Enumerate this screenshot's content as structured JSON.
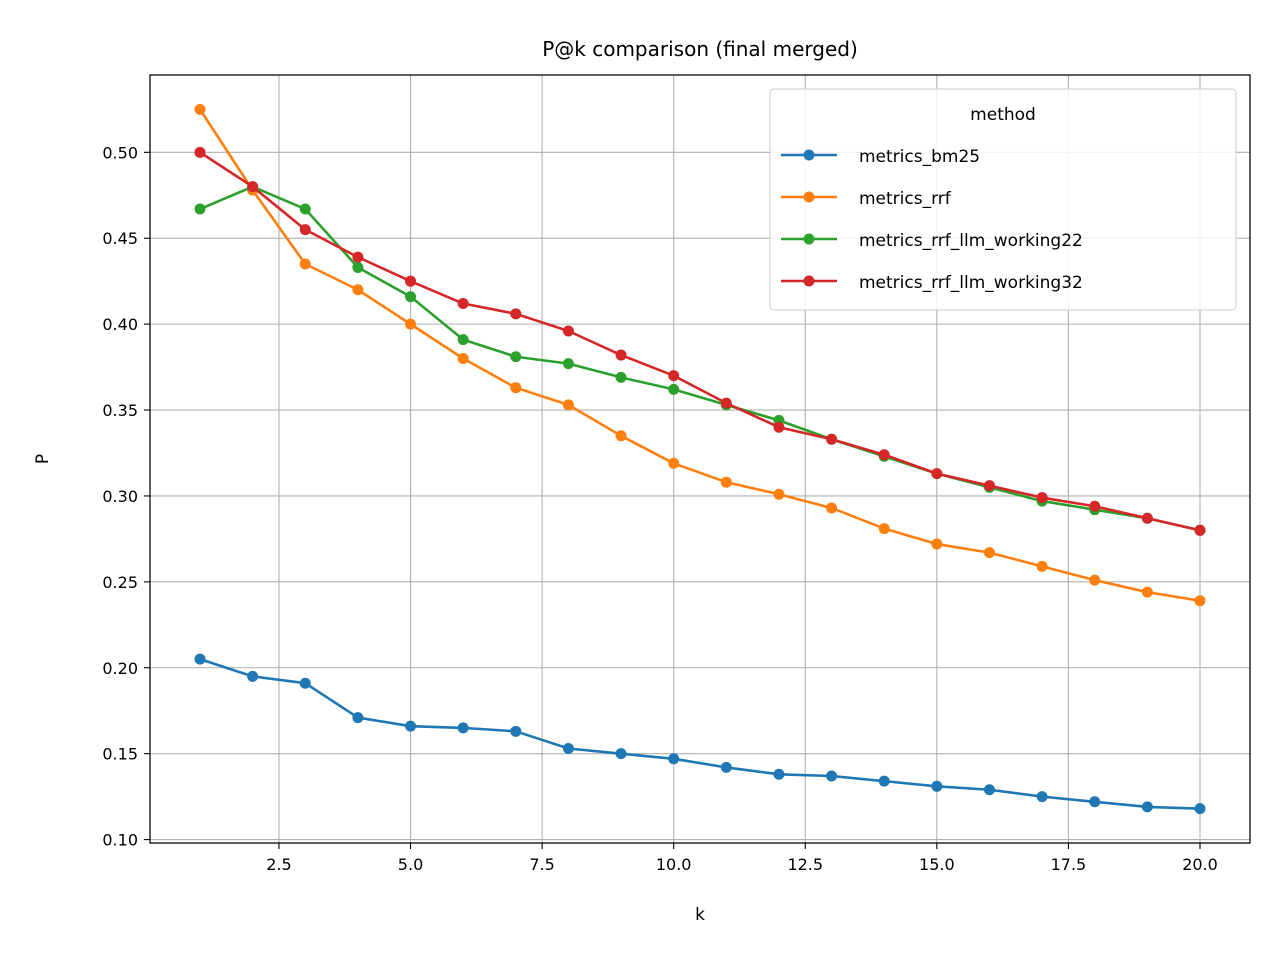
{
  "chart_data": {
    "type": "line",
    "title": "P@k comparison (final merged)",
    "xlabel": "k",
    "ylabel": "P",
    "xlim": [
      0.05,
      20.95
    ],
    "ylim": [
      0.098,
      0.545
    ],
    "xticks": [
      2.5,
      5.0,
      7.5,
      10.0,
      12.5,
      15.0,
      17.5,
      20.0
    ],
    "xtick_labels": [
      "2.5",
      "5.0",
      "7.5",
      "10.0",
      "12.5",
      "15.0",
      "17.5",
      "20.0"
    ],
    "yticks": [
      0.1,
      0.15,
      0.2,
      0.25,
      0.3,
      0.35,
      0.4,
      0.45,
      0.5
    ],
    "ytick_labels": [
      "0.10",
      "0.15",
      "0.20",
      "0.25",
      "0.30",
      "0.35",
      "0.40",
      "0.45",
      "0.50"
    ],
    "grid": true,
    "legend": {
      "title": "method",
      "position": "upper right"
    },
    "x": [
      1,
      2,
      3,
      4,
      5,
      6,
      7,
      8,
      9,
      10,
      11,
      12,
      13,
      14,
      15,
      16,
      17,
      18,
      19,
      20
    ],
    "series": [
      {
        "name": "metrics_bm25",
        "color": "#1f77b4",
        "values": [
          0.205,
          0.195,
          0.191,
          0.171,
          0.166,
          0.165,
          0.163,
          0.153,
          0.15,
          0.147,
          0.142,
          0.138,
          0.137,
          0.134,
          0.131,
          0.129,
          0.125,
          0.122,
          0.119,
          0.118
        ]
      },
      {
        "name": "metrics_rrf",
        "color": "#ff7f0e",
        "values": [
          0.525,
          0.478,
          0.435,
          0.42,
          0.4,
          0.38,
          0.363,
          0.353,
          0.335,
          0.319,
          0.308,
          0.301,
          0.293,
          0.281,
          0.272,
          0.267,
          0.259,
          0.251,
          0.244,
          0.239
        ]
      },
      {
        "name": "metrics_rrf_llm_working22",
        "color": "#2ca02c",
        "values": [
          0.467,
          0.48,
          0.467,
          0.433,
          0.416,
          0.391,
          0.381,
          0.377,
          0.369,
          0.362,
          0.353,
          0.344,
          0.333,
          0.323,
          0.313,
          0.305,
          0.297,
          0.292,
          0.287,
          0.28
        ]
      },
      {
        "name": "metrics_rrf_llm_working32",
        "color": "#d62728",
        "values": [
          0.5,
          0.48,
          0.455,
          0.439,
          0.425,
          0.412,
          0.406,
          0.396,
          0.382,
          0.37,
          0.354,
          0.34,
          0.333,
          0.324,
          0.313,
          0.306,
          0.299,
          0.294,
          0.287,
          0.28
        ]
      }
    ]
  }
}
